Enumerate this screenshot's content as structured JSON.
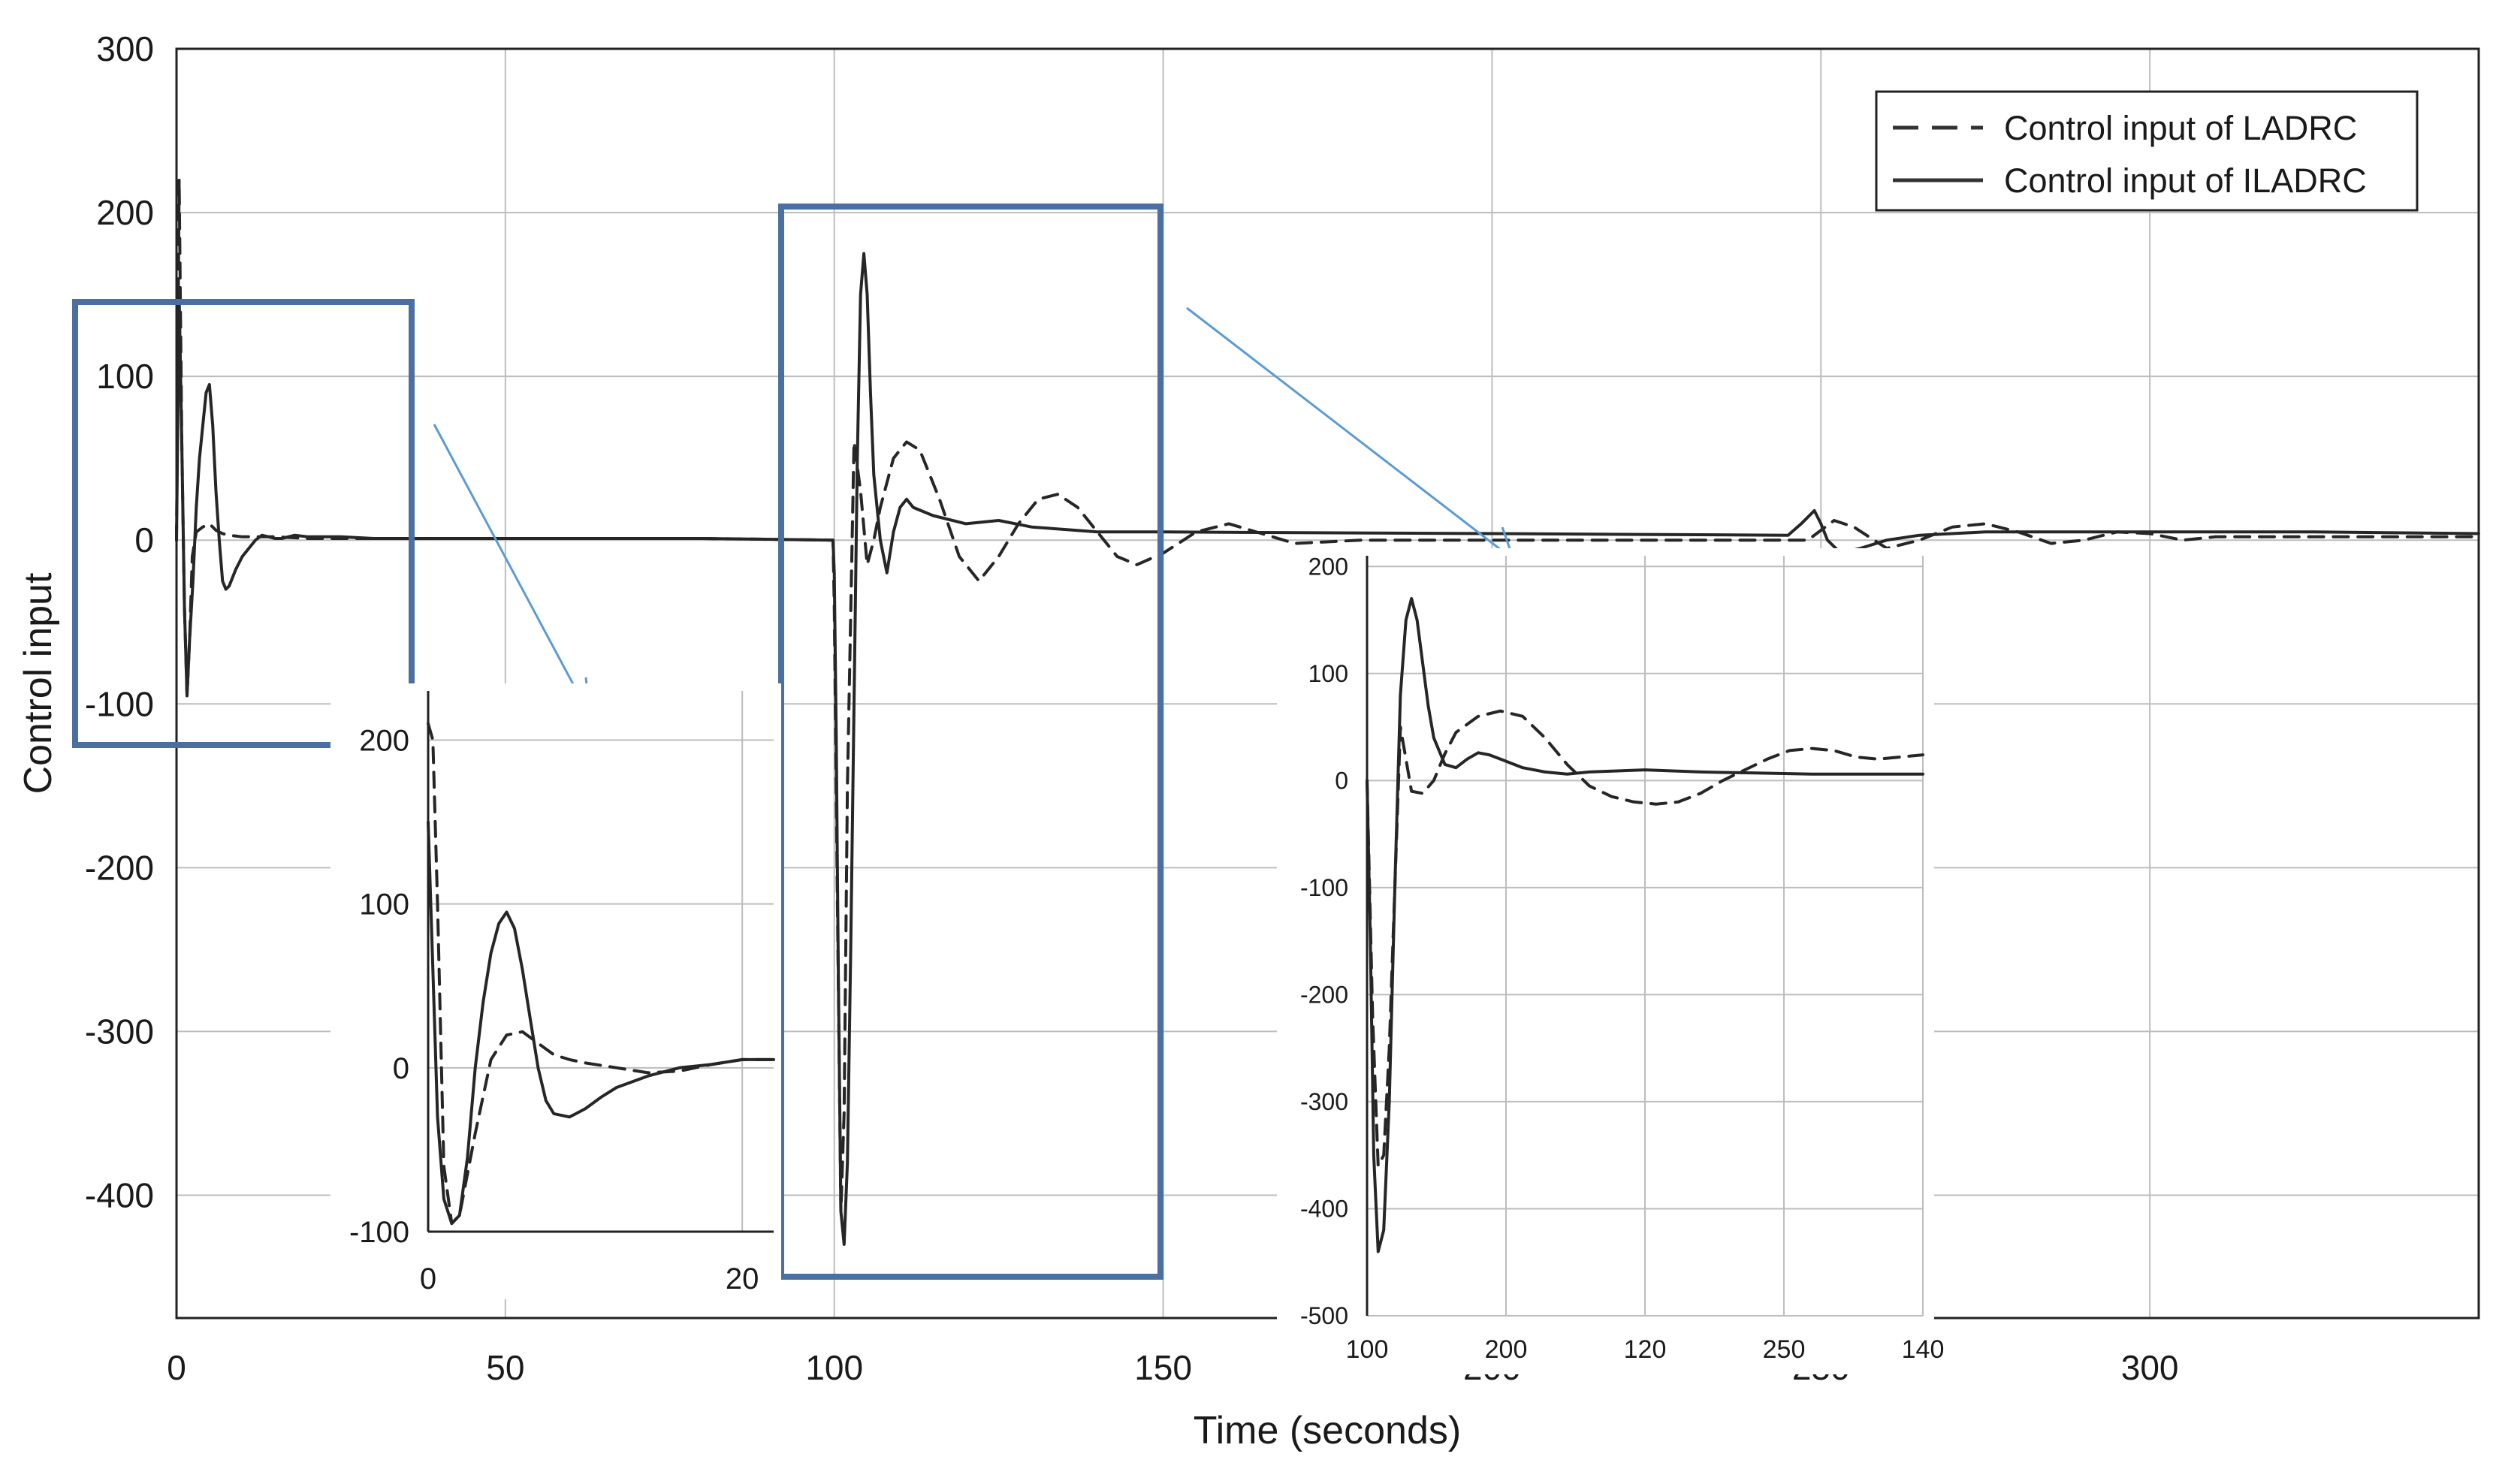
{
  "chart_data": [
    {
      "type": "line",
      "role": "main",
      "xlabel": "Time (seconds)",
      "ylabel": "Control input",
      "xlim": [
        0,
        350
      ],
      "ylim": [
        -475,
        300
      ],
      "x_ticks": [
        "0",
        "50",
        "100",
        "150",
        "200",
        "250",
        "300"
      ],
      "y_ticks": [
        "300",
        "200",
        "100",
        "0",
        "-100",
        "-200",
        "-300",
        "-400"
      ],
      "grid": true,
      "legend_position": "top-right",
      "series": [
        {
          "name": "Control input of LADRC",
          "style": "dashed",
          "x": [
            0,
            0.4,
            0.8,
            1.2,
            1.6,
            2.0,
            2.4,
            3.0,
            4.0,
            5.0,
            6.0,
            7.0,
            8.0,
            10,
            12,
            15,
            20,
            25,
            30,
            40,
            60,
            80,
            99.8,
            100.0,
            100.5,
            101.0,
            101.5,
            102.0,
            103.0,
            104.0,
            105.0,
            106.0,
            107.0,
            109.0,
            111.0,
            113.0,
            116.0,
            119.0,
            122.0,
            125.0,
            128.0,
            131.0,
            134.0,
            137.0,
            140.0,
            143.0,
            146.0,
            150.0,
            155.0,
            160.0,
            165.0,
            170.0,
            180.0,
            200.0,
            220.0,
            240.0,
            248.0,
            250.0,
            252.0,
            255.0,
            260.0,
            265.0,
            270.0,
            275.0,
            280.0,
            285.0,
            290.0,
            295.0,
            300.0,
            305.0,
            310.0,
            320.0,
            335.0,
            350.0
          ],
          "y": [
            0,
            220,
            60,
            -40,
            -95,
            -60,
            -10,
            5,
            8,
            10,
            6,
            4,
            3,
            2,
            2,
            2,
            1,
            1,
            1,
            1,
            1,
            1,
            0,
            -40,
            -230,
            -410,
            -350,
            -150,
            60,
            30,
            -15,
            0,
            20,
            50,
            60,
            55,
            25,
            -10,
            -25,
            -10,
            10,
            25,
            28,
            20,
            5,
            -10,
            -15,
            -8,
            5,
            10,
            4,
            -2,
            0,
            0,
            0,
            0,
            0,
            6,
            12,
            8,
            -5,
            0,
            8,
            10,
            5,
            -2,
            0,
            5,
            4,
            0,
            2,
            2,
            2,
            2
          ]
        },
        {
          "name": "Control input of ILADRC",
          "style": "solid",
          "x": [
            0,
            0.4,
            0.8,
            1.2,
            1.6,
            2.0,
            2.5,
            3.0,
            3.5,
            4.0,
            4.5,
            5.0,
            5.5,
            6.0,
            6.5,
            7.0,
            7.5,
            8.0,
            9.0,
            10.0,
            11.0,
            12.0,
            13.0,
            14.0,
            15.0,
            16.0,
            17.0,
            18.0,
            20.0,
            25.0,
            30.0,
            40.0,
            60.0,
            80.0,
            99.8,
            100.0,
            100.3,
            100.6,
            101.0,
            101.5,
            102.0,
            102.5,
            103.0,
            103.5,
            104.0,
            104.5,
            105.0,
            105.5,
            106.0,
            107.0,
            108.0,
            109.0,
            110.0,
            111.0,
            112.0,
            115.0,
            120.0,
            125.0,
            130.0,
            140.0,
            150.0,
            200.0,
            245.0,
            247.0,
            249.0,
            250.0,
            251.0,
            253.0,
            256.0,
            260.0,
            265.0,
            275.0,
            300.0,
            325.0,
            350.0
          ],
          "y": [
            0,
            150,
            60,
            -40,
            -95,
            -60,
            -25,
            20,
            50,
            70,
            90,
            95,
            70,
            30,
            0,
            -25,
            -30,
            -28,
            -18,
            -10,
            -5,
            0,
            3,
            2,
            1,
            1,
            2,
            3,
            2,
            2,
            1,
            1,
            1,
            1,
            0,
            -20,
            -120,
            -260,
            -410,
            -430,
            -380,
            -250,
            -100,
            50,
            150,
            175,
            150,
            90,
            40,
            0,
            -20,
            5,
            20,
            25,
            20,
            15,
            10,
            12,
            8,
            5,
            5,
            4,
            3,
            10,
            18,
            10,
            0,
            -8,
            -5,
            0,
            3,
            5,
            5,
            5,
            4
          ]
        }
      ]
    },
    {
      "type": "line",
      "role": "inset-zoom",
      "xlim": [
        0,
        22
      ],
      "ylim": [
        -100,
        230
      ],
      "x_ticks": [
        "0",
        "20"
      ],
      "y_ticks": [
        "200",
        "100",
        "0",
        "-100"
      ],
      "grid": true,
      "series": [
        {
          "style": "dashed",
          "x": [
            0,
            0.3,
            0.6,
            1.0,
            1.5,
            2.0,
            3.0,
            4.0,
            5.0,
            6.0,
            7.0,
            8.0,
            9.0,
            10.0,
            12.0,
            14.0,
            16.0,
            18.0,
            20.0,
            22.0
          ],
          "y": [
            210,
            200,
            100,
            -60,
            -95,
            -90,
            -40,
            5,
            20,
            22,
            15,
            8,
            5,
            3,
            0,
            -3,
            -2,
            2,
            5,
            5
          ]
        },
        {
          "style": "solid",
          "x": [
            0,
            0.3,
            0.6,
            1.0,
            1.5,
            2.0,
            2.5,
            3.0,
            3.5,
            4.0,
            4.5,
            5.0,
            5.5,
            6.0,
            6.5,
            7.0,
            7.5,
            8.0,
            9.0,
            10.0,
            11.0,
            12.0,
            14.0,
            16.0,
            18.0,
            20.0,
            22.0
          ],
          "y": [
            150,
            60,
            -30,
            -80,
            -95,
            -90,
            -55,
            0,
            40,
            70,
            88,
            95,
            85,
            60,
            30,
            0,
            -20,
            -28,
            -30,
            -25,
            -18,
            -12,
            -5,
            0,
            2,
            5,
            5
          ]
        }
      ]
    },
    {
      "type": "line",
      "role": "inset-zoom",
      "xlim": [
        100,
        150
      ],
      "ylim": [
        -500,
        210
      ],
      "x_tick_labels": [
        "100",
        "200",
        "120",
        "250",
        "140"
      ],
      "y_ticks": [
        "200",
        "100",
        "0",
        "-100",
        "-200",
        "-300",
        "-400",
        "-500"
      ],
      "grid": true,
      "series": [
        {
          "style": "dashed",
          "x": [
            100.0,
            100.5,
            101.0,
            101.5,
            102.0,
            102.5,
            103.0,
            103.5,
            104.0,
            105.0,
            106.0,
            107.0,
            108.0,
            110.0,
            112.0,
            114.0,
            116.0,
            118.0,
            120.0,
            122.0,
            124.0,
            126.0,
            128.0,
            130.0,
            132.0,
            134.0,
            136.0,
            138.0,
            140.0,
            142.0,
            144.0,
            146.0,
            148.0,
            150.0
          ],
          "y": [
            0,
            -220,
            -360,
            -350,
            -250,
            -100,
            50,
            20,
            -10,
            -12,
            0,
            25,
            45,
            60,
            65,
            60,
            40,
            15,
            -5,
            -15,
            -20,
            -22,
            -20,
            -12,
            0,
            10,
            20,
            28,
            30,
            28,
            22,
            20,
            22,
            24
          ]
        },
        {
          "style": "solid",
          "x": [
            100.0,
            100.3,
            100.6,
            101.0,
            101.5,
            102.0,
            102.5,
            103.0,
            103.5,
            104.0,
            104.5,
            105.0,
            105.5,
            106.0,
            107.0,
            108.0,
            109.0,
            110.0,
            111.0,
            112.0,
            114.0,
            116.0,
            118.0,
            120.0,
            125.0,
            130.0,
            135.0,
            140.0,
            145.0,
            150.0
          ],
          "y": [
            0,
            -150,
            -350,
            -440,
            -420,
            -300,
            -100,
            80,
            150,
            170,
            150,
            110,
            70,
            40,
            15,
            12,
            20,
            26,
            24,
            20,
            12,
            8,
            6,
            8,
            10,
            8,
            7,
            6,
            6,
            6
          ]
        }
      ]
    }
  ]
}
